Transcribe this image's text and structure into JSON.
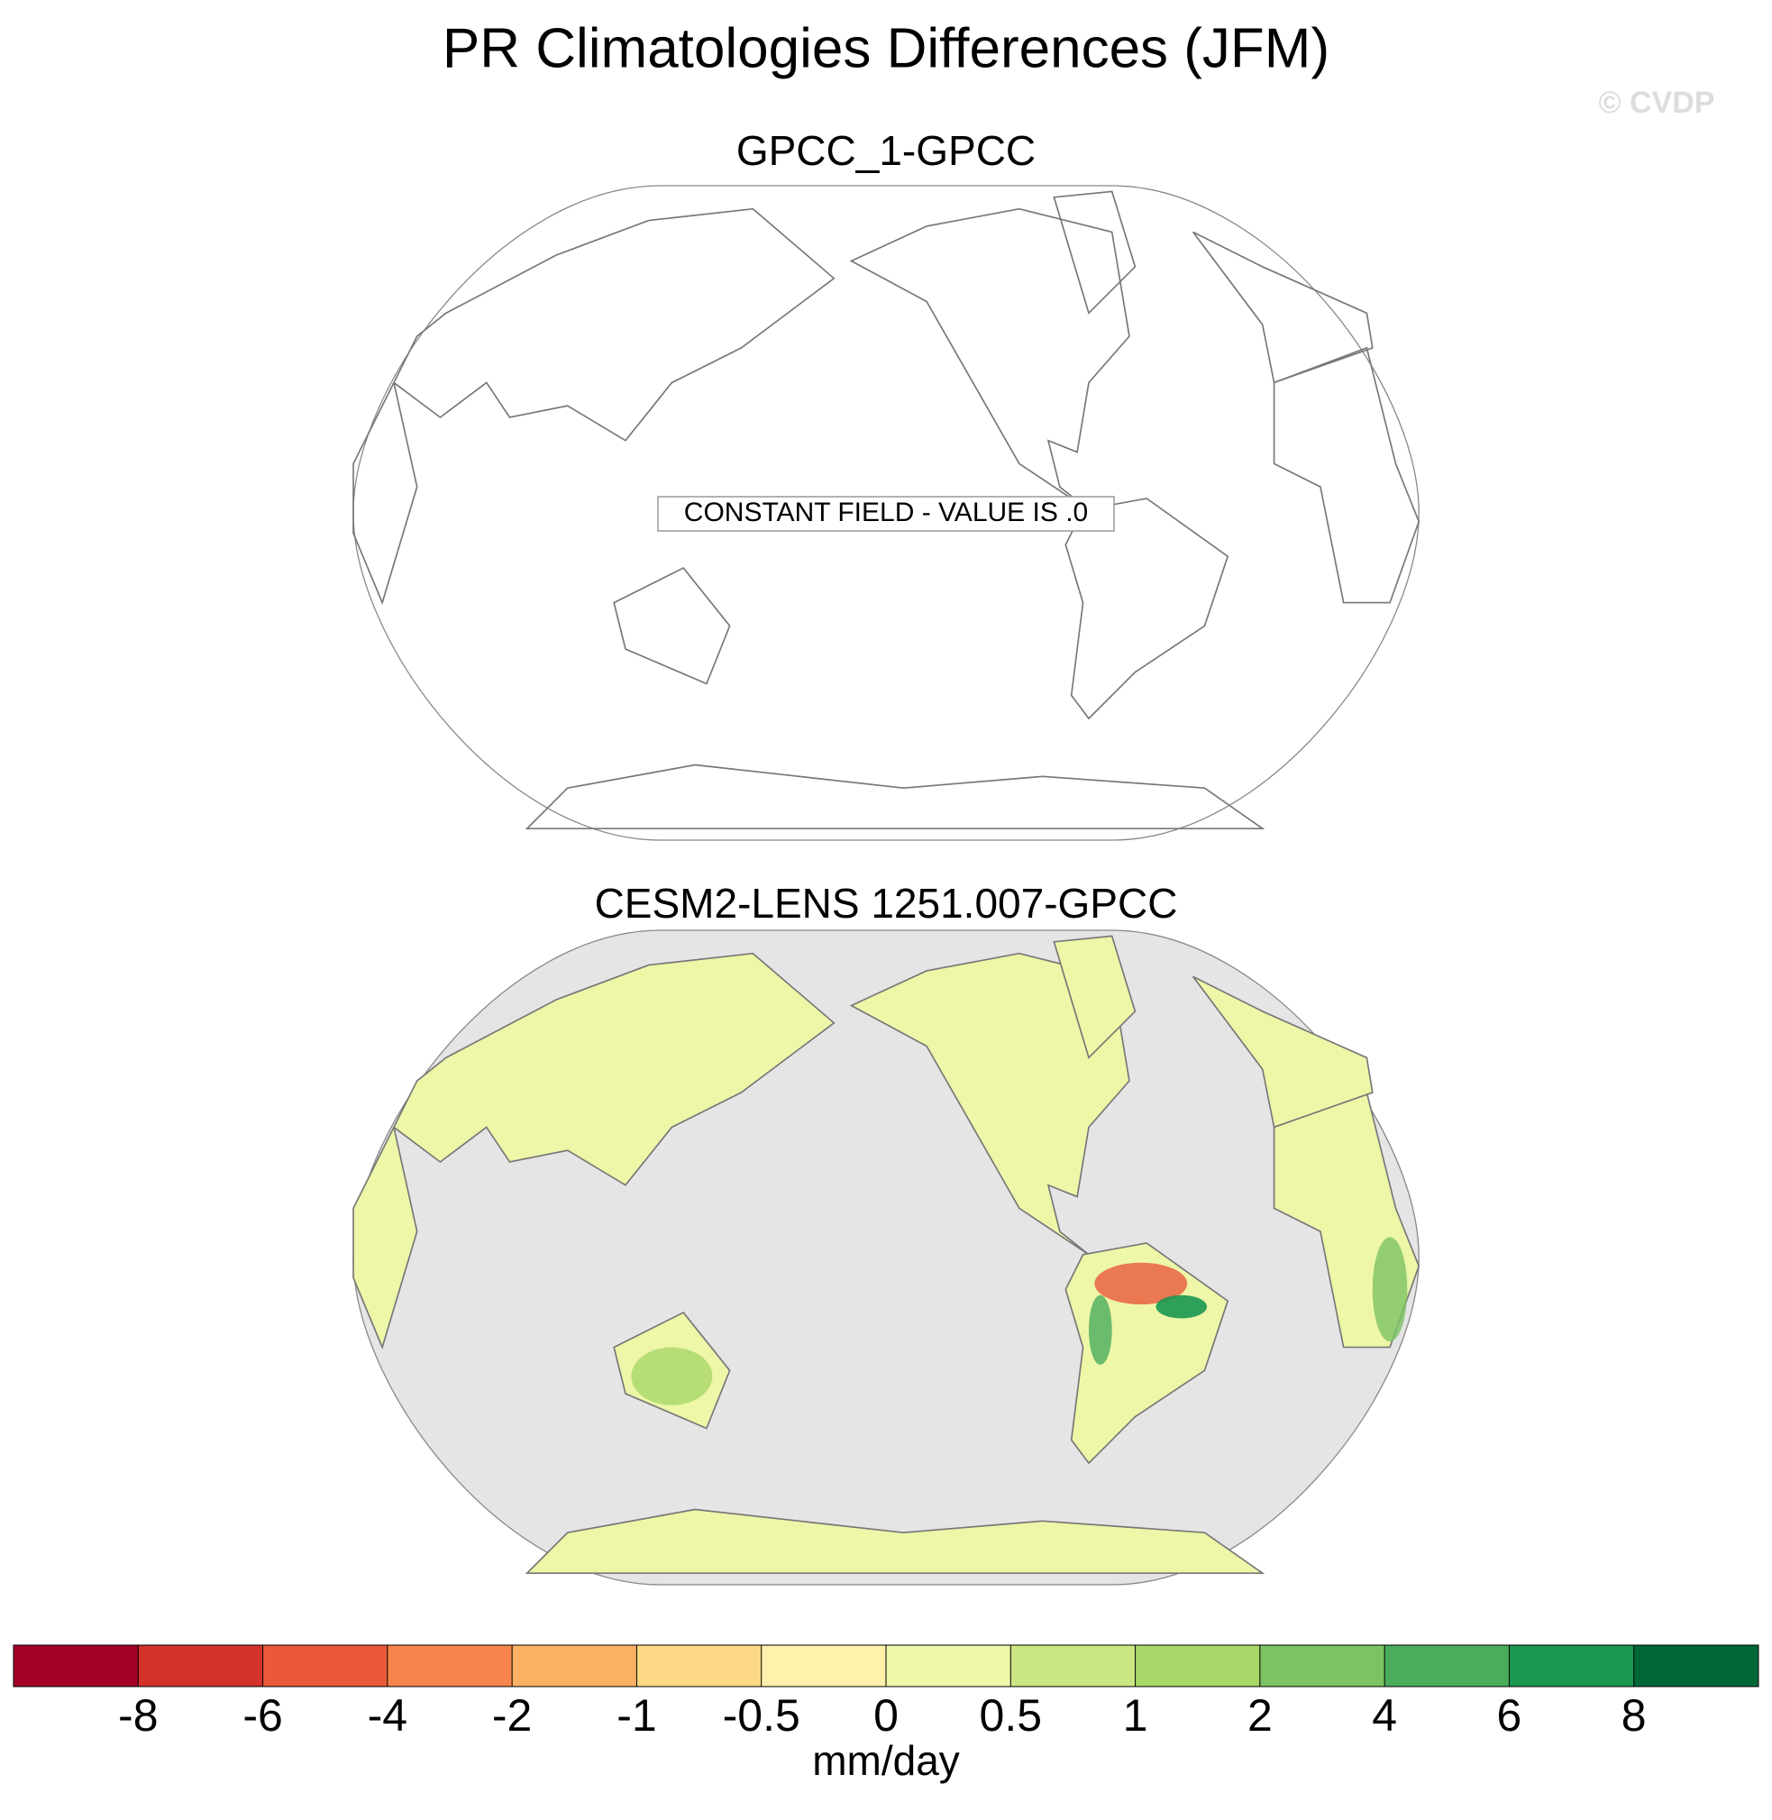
{
  "title": "PR Climatologies Differences (JFM)",
  "watermark": "© CVDP",
  "panels": [
    {
      "title": "GPCC_1-GPCC",
      "annotation": "CONSTANT FIELD - VALUE IS .0"
    },
    {
      "title": "CESM2-LENS 1251.007-GPCC"
    }
  ],
  "colorbar": {
    "label": "mm/day",
    "levels": [
      -8,
      -6,
      -4,
      -2,
      -1,
      -0.5,
      0,
      0.5,
      1,
      2,
      4,
      6,
      8
    ],
    "colors": [
      "#a50026",
      "#d3322b",
      "#e9593a",
      "#f6854d",
      "#fbb163",
      "#fdd985",
      "#fef1ab",
      "#eef6a8",
      "#cbe784",
      "#a7d868",
      "#7cc363",
      "#4aad5c",
      "#1a9750",
      "#006837"
    ]
  }
}
